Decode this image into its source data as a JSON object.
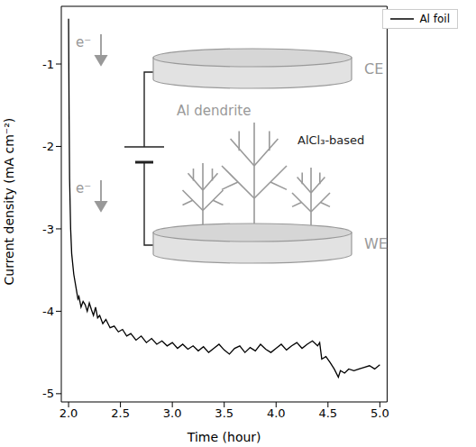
{
  "chart_data": {
    "type": "line",
    "x_label": "Time (hour)",
    "y_label": "Current density (mA cm⁻²)",
    "xlim": [
      1.93,
      5.07
    ],
    "xticks": [
      2.0,
      2.5,
      3.0,
      3.5,
      4.0,
      4.5,
      5.0
    ],
    "ylim": [
      -5.1,
      -0.3
    ],
    "yticks": [
      -1,
      -2,
      -3,
      -4,
      -5
    ],
    "grid": false,
    "legend": "upper right",
    "annotations": [
      "CE",
      "WE",
      "Al dendrite",
      "AlCl₃-based",
      "e⁻",
      "e⁻"
    ],
    "series": [
      {
        "name": "Al foil",
        "color": "#000000",
        "x": [
          2.0,
          2.005,
          2.01,
          2.02,
          2.03,
          2.05,
          2.07,
          2.09,
          2.1,
          2.12,
          2.14,
          2.16,
          2.18,
          2.2,
          2.22,
          2.24,
          2.26,
          2.28,
          2.3,
          2.33,
          2.36,
          2.4,
          2.44,
          2.48,
          2.52,
          2.56,
          2.6,
          2.65,
          2.7,
          2.75,
          2.8,
          2.85,
          2.9,
          2.95,
          3.0,
          3.05,
          3.1,
          3.15,
          3.2,
          3.25,
          3.3,
          3.35,
          3.4,
          3.45,
          3.5,
          3.55,
          3.6,
          3.65,
          3.7,
          3.75,
          3.8,
          3.85,
          3.9,
          3.95,
          4.0,
          4.05,
          4.1,
          4.15,
          4.2,
          4.25,
          4.3,
          4.35,
          4.4,
          4.42,
          4.44,
          4.48,
          4.52,
          4.56,
          4.6,
          4.62,
          4.66,
          4.7,
          4.75,
          4.8,
          4.85,
          4.9,
          4.95,
          5.0
        ],
        "values": [
          -0.45,
          -1.6,
          -2.4,
          -3.0,
          -3.3,
          -3.55,
          -3.7,
          -3.85,
          -3.82,
          -3.95,
          -3.88,
          -3.92,
          -4.0,
          -3.9,
          -3.98,
          -4.05,
          -3.95,
          -4.08,
          -4.05,
          -4.15,
          -4.1,
          -4.2,
          -4.18,
          -4.25,
          -4.22,
          -4.3,
          -4.27,
          -4.35,
          -4.3,
          -4.38,
          -4.33,
          -4.4,
          -4.36,
          -4.42,
          -4.38,
          -4.45,
          -4.4,
          -4.46,
          -4.42,
          -4.48,
          -4.43,
          -4.5,
          -4.45,
          -4.4,
          -4.47,
          -4.52,
          -4.45,
          -4.42,
          -4.5,
          -4.44,
          -4.48,
          -4.4,
          -4.46,
          -4.5,
          -4.45,
          -4.4,
          -4.47,
          -4.42,
          -4.38,
          -4.45,
          -4.4,
          -4.36,
          -4.42,
          -4.38,
          -4.58,
          -4.55,
          -4.62,
          -4.7,
          -4.8,
          -4.72,
          -4.75,
          -4.7,
          -4.72,
          -4.7,
          -4.68,
          -4.66,
          -4.7,
          -4.65
        ]
      }
    ]
  }
}
